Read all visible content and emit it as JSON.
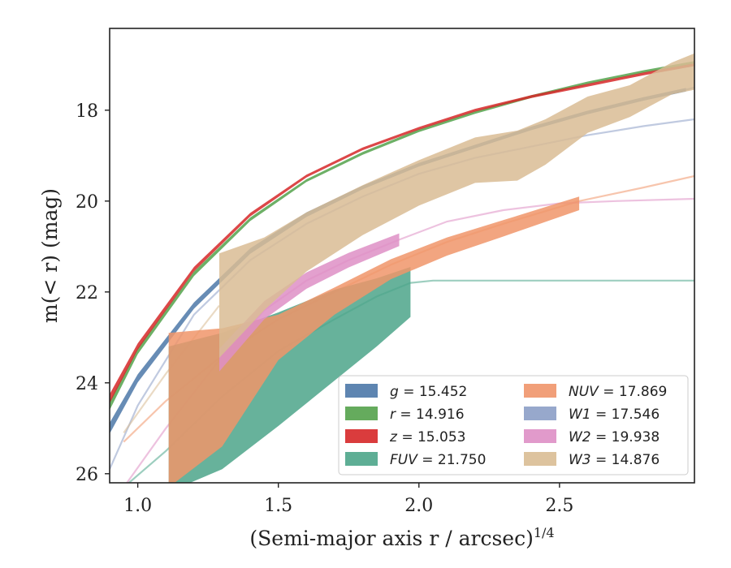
{
  "chart_data": {
    "type": "area",
    "xlabel": "(Semi-major axis r / arcsec)",
    "xlabel_exponent": "1/4",
    "ylabel": "m(< r) (mag)",
    "xlim": [
      0.9,
      2.98
    ],
    "ylim": [
      26.2,
      16.2
    ],
    "y_inverted": true,
    "x_ticks": [
      1.0,
      1.5,
      2.0,
      2.5
    ],
    "x_tick_labels": [
      "1.0",
      "1.5",
      "2.0",
      "2.5"
    ],
    "y_ticks": [
      18,
      20,
      22,
      24,
      26
    ],
    "y_tick_labels": [
      "18",
      "20",
      "22",
      "24",
      "26"
    ],
    "grid": false,
    "legend_position": "lower-right",
    "series": [
      {
        "name": "g = 15.452",
        "var": "g",
        "val": "15.452",
        "color": "#4C78A8",
        "band_x": [
          0.9,
          1.0,
          1.2,
          1.4,
          1.6,
          1.8,
          2.0,
          2.2,
          2.4,
          2.6,
          2.8,
          2.95
        ],
        "band_y": [
          25.0,
          23.9,
          22.3,
          21.1,
          20.3,
          19.7,
          19.2,
          18.8,
          18.4,
          18.05,
          17.75,
          17.55
        ],
        "band_half": [
          0.12,
          0.09,
          0.07,
          0.06,
          0.05,
          0.04,
          0.04,
          0.04,
          0.04,
          0.04,
          0.04,
          0.04
        ],
        "line_x": [
          2.95,
          2.98
        ],
        "line_y": [
          17.55,
          17.5
        ]
      },
      {
        "name": "r = 14.916",
        "var": "r",
        "val": "14.916",
        "color": "#54A24B",
        "band_x": [
          0.9,
          1.0,
          1.2,
          1.4,
          1.6,
          1.8,
          2.0,
          2.2,
          2.4,
          2.6,
          2.8,
          2.98
        ],
        "band_y": [
          24.5,
          23.3,
          21.6,
          20.4,
          19.55,
          18.95,
          18.45,
          18.05,
          17.7,
          17.4,
          17.15,
          16.95
        ],
        "band_half": [
          0.1,
          0.07,
          0.05,
          0.04,
          0.03,
          0.03,
          0.03,
          0.03,
          0.03,
          0.03,
          0.03,
          0.03
        ],
        "line_x": [],
        "line_y": []
      },
      {
        "name": "z = 15.053",
        "var": "z",
        "val": "15.053",
        "color": "#D62728",
        "band_x": [
          0.9,
          1.0,
          1.2,
          1.4,
          1.6,
          1.8,
          2.0,
          2.2,
          2.4,
          2.6,
          2.8,
          2.98
        ],
        "band_y": [
          24.35,
          23.2,
          21.5,
          20.3,
          19.45,
          18.85,
          18.4,
          18.0,
          17.7,
          17.45,
          17.2,
          17.0
        ],
        "band_half": [
          0.1,
          0.07,
          0.05,
          0.04,
          0.03,
          0.03,
          0.03,
          0.03,
          0.03,
          0.03,
          0.03,
          0.03
        ],
        "line_x": [],
        "line_y": []
      },
      {
        "name": "FUV = 21.750",
        "var": "FUV",
        "val": "21.750",
        "color": "#4CA58A",
        "band_x": [
          1.11,
          1.3,
          1.5,
          1.7,
          1.85,
          1.97
        ],
        "band_y": [
          24.8,
          24.4,
          23.7,
          22.95,
          22.45,
          22.0
        ],
        "band_half": [
          1.6,
          1.5,
          1.25,
          1.0,
          0.75,
          0.55
        ],
        "line_x": [
          0.95,
          1.1,
          1.3,
          1.5,
          1.7,
          1.85,
          1.97,
          2.05,
          2.3,
          2.6,
          2.98
        ],
        "line_y": [
          26.3,
          25.5,
          24.3,
          23.3,
          22.6,
          22.1,
          21.8,
          21.75,
          21.75,
          21.75,
          21.75
        ]
      },
      {
        "name": "NUV = 17.869",
        "var": "NUV",
        "val": "17.869",
        "color": "#F0956A",
        "band_x": [
          1.11,
          1.3,
          1.5,
          1.7,
          1.9,
          2.1,
          2.3,
          2.57
        ],
        "band_y": [
          24.6,
          24.1,
          23.0,
          22.2,
          21.5,
          21.0,
          20.6,
          20.05
        ],
        "band_half": [
          1.7,
          1.3,
          0.5,
          0.3,
          0.22,
          0.2,
          0.18,
          0.15
        ],
        "line_x": [
          0.95,
          1.1,
          1.3,
          1.5,
          1.7,
          1.9,
          2.1,
          2.3,
          2.57,
          2.8,
          2.98
        ],
        "line_y": [
          25.3,
          24.4,
          23.4,
          22.6,
          22.0,
          21.4,
          20.9,
          20.5,
          20.0,
          19.7,
          19.45
        ]
      },
      {
        "name": "W1 = 17.546",
        "var": "W1",
        "val": "17.546",
        "color": "#8C9EC7",
        "band_x": [],
        "band_y": [],
        "band_half": [],
        "line_x": [
          0.9,
          1.0,
          1.2,
          1.4,
          1.6,
          1.8,
          2.0,
          2.2,
          2.4,
          2.6,
          2.8,
          2.98
        ],
        "line_y": [
          25.9,
          24.5,
          22.5,
          21.3,
          20.5,
          19.9,
          19.4,
          19.05,
          18.8,
          18.55,
          18.35,
          18.2
        ]
      },
      {
        "name": "W2 = 19.938",
        "var": "W2",
        "val": "19.938",
        "color": "#DE8FC5",
        "band_x": [
          1.29,
          1.45,
          1.6,
          1.75,
          1.93
        ],
        "band_y": [
          23.5,
          22.4,
          21.75,
          21.3,
          20.85
        ],
        "band_half": [
          0.25,
          0.2,
          0.18,
          0.16,
          0.14
        ],
        "line_x": [
          0.95,
          1.1,
          1.29,
          1.45,
          1.6,
          1.75,
          1.93,
          2.1,
          2.3,
          2.5,
          2.7,
          2.98
        ],
        "line_y": [
          26.3,
          25.0,
          23.5,
          22.4,
          21.75,
          21.3,
          20.85,
          20.45,
          20.2,
          20.05,
          20.0,
          19.95
        ]
      },
      {
        "name": "W3 = 14.876",
        "var": "W3",
        "val": "14.876",
        "color": "#D9BC94",
        "band_x": [
          1.29,
          1.45,
          1.6,
          1.8,
          2.0,
          2.2,
          2.35,
          2.45,
          2.6,
          2.75,
          2.9,
          2.98
        ],
        "band_y": [
          22.3,
          21.6,
          20.9,
          20.2,
          19.6,
          19.1,
          19.0,
          18.7,
          18.1,
          17.8,
          17.3,
          17.15
        ],
        "band_half": [
          1.15,
          0.8,
          0.65,
          0.55,
          0.5,
          0.5,
          0.55,
          0.5,
          0.4,
          0.35,
          0.35,
          0.4
        ],
        "line_x": [
          0.95,
          1.1,
          1.29
        ],
        "line_y": [
          25.1,
          23.8,
          22.3
        ]
      }
    ]
  }
}
